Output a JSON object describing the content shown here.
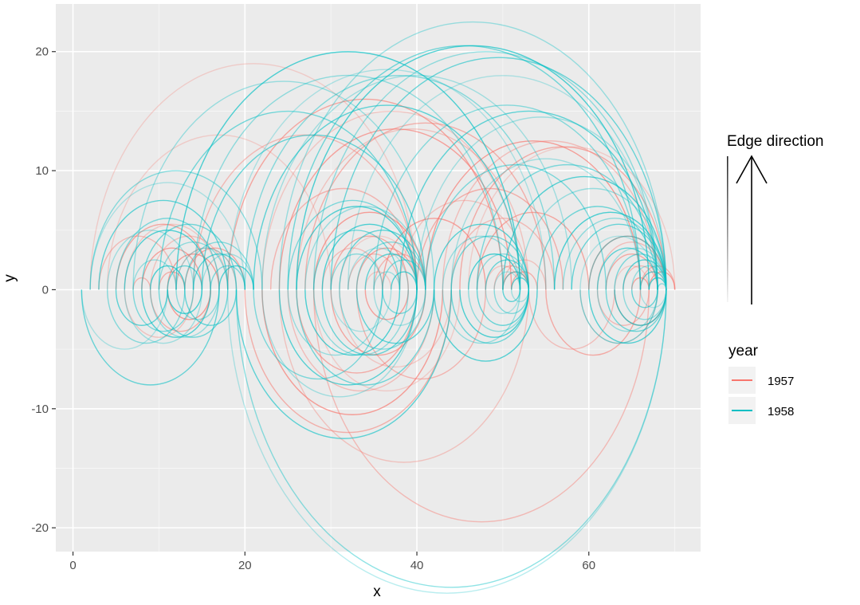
{
  "chart_data": {
    "type": "arc",
    "xlabel": "x",
    "ylabel": "y",
    "xlim": [
      -2,
      73
    ],
    "ylim": [
      -22,
      24
    ],
    "xticks": [
      0,
      20,
      40,
      60
    ],
    "yticks": [
      -20,
      -10,
      0,
      10,
      20
    ],
    "grid": true,
    "legend_position": "right",
    "edge_legend_title": "Edge direction",
    "legend_title": "year",
    "series": [
      {
        "name": "1957",
        "color": "#F8766D",
        "arcs": [
          [
            2,
            40,
            1
          ],
          [
            3,
            12,
            1
          ],
          [
            5,
            16,
            1
          ],
          [
            6,
            17,
            1
          ],
          [
            7,
            9,
            1
          ],
          [
            8,
            15,
            1
          ],
          [
            9,
            18,
            1
          ],
          [
            10,
            13,
            1
          ],
          [
            11,
            17,
            1
          ],
          [
            12,
            19,
            1
          ],
          [
            13,
            20,
            1
          ],
          [
            4,
            30,
            1
          ],
          [
            14,
            40,
            1
          ],
          [
            18,
            50,
            1
          ],
          [
            22,
            52,
            1
          ],
          [
            23,
            40,
            1
          ],
          [
            24,
            51,
            1
          ],
          [
            26,
            53,
            1
          ],
          [
            27,
            55,
            1
          ],
          [
            28,
            41,
            1
          ],
          [
            29,
            36,
            1
          ],
          [
            30,
            39,
            1
          ],
          [
            31,
            40,
            1
          ],
          [
            32,
            38,
            1
          ],
          [
            33,
            40,
            1
          ],
          [
            34,
            37,
            1
          ],
          [
            35,
            41,
            1
          ],
          [
            36,
            48,
            1
          ],
          [
            38,
            53,
            1
          ],
          [
            40,
            57,
            1
          ],
          [
            41,
            66,
            1
          ],
          [
            43,
            68,
            1
          ],
          [
            45,
            69,
            1
          ],
          [
            46,
            70,
            1
          ],
          [
            44,
            56,
            1
          ],
          [
            47,
            60,
            1
          ],
          [
            48,
            52,
            1
          ],
          [
            49,
            53,
            1
          ],
          [
            50,
            53,
            1
          ],
          [
            50,
            55,
            1
          ],
          [
            51,
            54,
            1
          ],
          [
            60,
            69,
            1
          ],
          [
            61,
            69,
            1
          ],
          [
            62,
            68,
            1
          ],
          [
            63,
            67,
            1
          ],
          [
            64,
            68,
            1
          ],
          [
            65,
            67,
            1
          ],
          [
            66,
            69,
            1
          ],
          [
            66,
            70,
            1
          ],
          [
            67,
            70,
            1
          ],
          [
            24,
            53,
            -1
          ],
          [
            20,
            44,
            -1
          ],
          [
            22,
            43,
            -1
          ],
          [
            25,
            42,
            -1
          ],
          [
            26,
            40,
            -1
          ],
          [
            28,
            45,
            -1
          ],
          [
            28,
            67,
            -1
          ],
          [
            30,
            41,
            -1
          ],
          [
            31,
            44,
            -1
          ],
          [
            33,
            48,
            -1
          ],
          [
            34,
            39,
            -1
          ],
          [
            6,
            14,
            -1
          ],
          [
            9,
            16,
            -1
          ],
          [
            11,
            16,
            -1
          ],
          [
            53,
            63,
            -1
          ],
          [
            55,
            66,
            -1
          ],
          [
            59,
            68,
            -1
          ],
          [
            61,
            67,
            -1
          ],
          [
            63,
            69,
            -1
          ]
        ]
      },
      {
        "name": "1958",
        "color": "#00BFC4",
        "arcs": [
          [
            2,
            20,
            1
          ],
          [
            2,
            22,
            1
          ],
          [
            3,
            18,
            1
          ],
          [
            4,
            14,
            1
          ],
          [
            5,
            17,
            1
          ],
          [
            6,
            16,
            1
          ],
          [
            7,
            12,
            1
          ],
          [
            8,
            19,
            1
          ],
          [
            9,
            13,
            1
          ],
          [
            10,
            18,
            1
          ],
          [
            11,
            15,
            1
          ],
          [
            12,
            19,
            1
          ],
          [
            13,
            21,
            1
          ],
          [
            14,
            20,
            1
          ],
          [
            15,
            21,
            1
          ],
          [
            16,
            20,
            1
          ],
          [
            17,
            21,
            1
          ],
          [
            7,
            42,
            1
          ],
          [
            10,
            40,
            1
          ],
          [
            12,
            52,
            1
          ],
          [
            14,
            50,
            1
          ],
          [
            15,
            41,
            1
          ],
          [
            18,
            55,
            1
          ],
          [
            20,
            56,
            1
          ],
          [
            21,
            52,
            1
          ],
          [
            22,
            58,
            1
          ],
          [
            25,
            40,
            1
          ],
          [
            26,
            40,
            1
          ],
          [
            27,
            41,
            1
          ],
          [
            28,
            38,
            1
          ],
          [
            29,
            40,
            1
          ],
          [
            30,
            36,
            1
          ],
          [
            31,
            41,
            1
          ],
          [
            32,
            39,
            1
          ],
          [
            33,
            41,
            1
          ],
          [
            34,
            40,
            1
          ],
          [
            35,
            38,
            1
          ],
          [
            36,
            41,
            1
          ],
          [
            37,
            40,
            1
          ],
          [
            24,
            69,
            1
          ],
          [
            25,
            66,
            1
          ],
          [
            26,
            67,
            1
          ],
          [
            28,
            68,
            1
          ],
          [
            30,
            69,
            1
          ],
          [
            32,
            68,
            1
          ],
          [
            35,
            66,
            1
          ],
          [
            38,
            68,
            1
          ],
          [
            40,
            69,
            1
          ],
          [
            41,
            62,
            1
          ],
          [
            42,
            53,
            1
          ],
          [
            43,
            52,
            1
          ],
          [
            44,
            53,
            1
          ],
          [
            46,
            52,
            1
          ],
          [
            47,
            53,
            1
          ],
          [
            48,
            53,
            1
          ],
          [
            49,
            52,
            1
          ],
          [
            50,
            53,
            1
          ],
          [
            51,
            53,
            1
          ],
          [
            44,
            66,
            1
          ],
          [
            47,
            68,
            1
          ],
          [
            50,
            69,
            1
          ],
          [
            52,
            69,
            1
          ],
          [
            54,
            68,
            1
          ],
          [
            56,
            69,
            1
          ],
          [
            57,
            69,
            1
          ],
          [
            58,
            69,
            1
          ],
          [
            59,
            68,
            1
          ],
          [
            60,
            69,
            1
          ],
          [
            61,
            68,
            1
          ],
          [
            62,
            69,
            1
          ],
          [
            63,
            69,
            1
          ],
          [
            64,
            69,
            1
          ],
          [
            65,
            69,
            1
          ],
          [
            66,
            69,
            1
          ],
          [
            67,
            69,
            1
          ],
          [
            68,
            69,
            1
          ],
          [
            1,
            17,
            -1
          ],
          [
            1,
            11,
            -1
          ],
          [
            4,
            13,
            -1
          ],
          [
            5,
            11,
            -1
          ],
          [
            6,
            15,
            -1
          ],
          [
            7,
            14,
            -1
          ],
          [
            8,
            16,
            -1
          ],
          [
            9,
            17,
            -1
          ],
          [
            10,
            18,
            -1
          ],
          [
            11,
            15,
            -1
          ],
          [
            12,
            17,
            -1
          ],
          [
            13,
            19,
            -1
          ],
          [
            18,
            69,
            -1
          ],
          [
            19,
            69,
            -1
          ],
          [
            19,
            44,
            -1
          ],
          [
            22,
            40,
            -1
          ],
          [
            21,
            36,
            -1
          ],
          [
            24,
            40,
            -1
          ],
          [
            25,
            36,
            -1
          ],
          [
            26,
            42,
            -1
          ],
          [
            27,
            38,
            -1
          ],
          [
            28,
            39,
            -1
          ],
          [
            29,
            40,
            -1
          ],
          [
            30,
            37,
            -1
          ],
          [
            31,
            41,
            -1
          ],
          [
            33,
            42,
            -1
          ],
          [
            35,
            41,
            -1
          ],
          [
            36,
            40,
            -1
          ],
          [
            42,
            54,
            -1
          ],
          [
            43,
            52,
            -1
          ],
          [
            44,
            53,
            -1
          ],
          [
            45,
            53,
            -1
          ],
          [
            46,
            53,
            -1
          ],
          [
            47,
            53,
            -1
          ],
          [
            48,
            52,
            -1
          ],
          [
            49,
            53,
            -1
          ],
          [
            50,
            52,
            -1
          ],
          [
            51,
            53,
            -1
          ],
          [
            59,
            68,
            -1
          ],
          [
            60,
            69,
            -1
          ],
          [
            61,
            68,
            -1
          ],
          [
            62,
            69,
            -1
          ],
          [
            63,
            69,
            -1
          ],
          [
            64,
            69,
            -1
          ],
          [
            65,
            68,
            -1
          ],
          [
            66,
            69,
            -1
          ]
        ]
      }
    ]
  }
}
